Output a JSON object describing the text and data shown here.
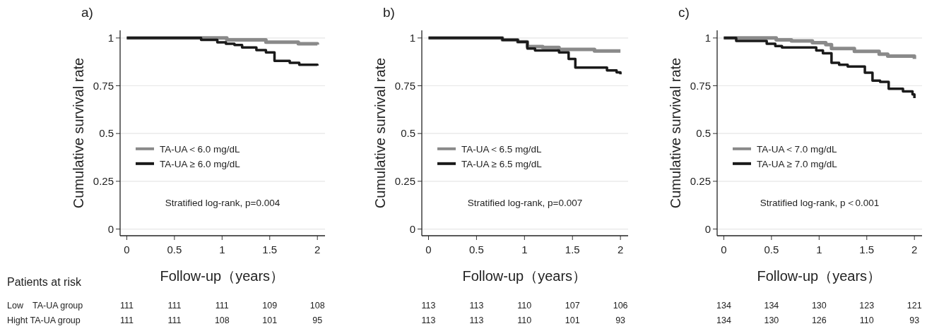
{
  "chart_data": [
    {
      "type": "step",
      "title": "a)",
      "xlabel": "Follow-up（years）",
      "ylabel": "Cumulative survival rate",
      "xlim": [
        -0.07,
        2.08
      ],
      "ylim": [
        -0.035,
        1.04
      ],
      "xticks": [
        0,
        0.5,
        1,
        1.5,
        2
      ],
      "yticks": [
        0,
        0.25,
        0.5,
        0.75,
        1
      ],
      "grid": "y",
      "legend": "left",
      "series": [
        {
          "name": "TA-UA＜6.0 mg/dL",
          "color": "#8a8a8a",
          "x": [
            0,
            1.05,
            1.46,
            1.8,
            2.0
          ],
          "values": [
            1,
            0.99,
            0.978,
            0.97,
            0.965
          ]
        },
        {
          "name": "TA-UA ≥ 6.0 mg/dL",
          "color": "#1a1a1a",
          "x": [
            0,
            0.78,
            0.95,
            1.04,
            1.13,
            1.21,
            1.36,
            1.46,
            1.55,
            1.71,
            1.81,
            2.0
          ],
          "values": [
            1,
            0.99,
            0.977,
            0.97,
            0.963,
            0.95,
            0.937,
            0.925,
            0.88,
            0.87,
            0.86,
            0.855
          ]
        }
      ],
      "annotations": [
        "Stratified log-rank, p=0.004",
        "Patients at risk",
        "Low　TA-UA group",
        "Hight TA-UA group",
        "111",
        "111",
        "111",
        "109",
        "108",
        "111",
        "111",
        "108",
        "101",
        "95"
      ]
    },
    {
      "type": "step",
      "title": "b)",
      "xlabel": "Follow-up（years）",
      "ylabel": "Cumulative survival rate",
      "xlim": [
        -0.07,
        2.08
      ],
      "ylim": [
        -0.035,
        1.04
      ],
      "xticks": [
        0,
        0.5,
        1,
        1.5,
        2
      ],
      "yticks": [
        0,
        0.25,
        0.5,
        0.75,
        1
      ],
      "grid": "y",
      "legend": "left",
      "series": [
        {
          "name": "TA-UA＜6.5 mg/dL",
          "color": "#8a8a8a",
          "x": [
            0,
            0.77,
            0.93,
            1.03,
            1.19,
            1.36,
            1.73,
            2.0
          ],
          "values": [
            1,
            0.99,
            0.98,
            0.955,
            0.95,
            0.94,
            0.932,
            0.932
          ]
        },
        {
          "name": "TA-UA ≥ 6.5 mg/dL",
          "color": "#1a1a1a",
          "x": [
            0,
            0.77,
            0.93,
            1.03,
            1.11,
            1.36,
            1.46,
            1.53,
            1.86,
            1.96,
            2.0
          ],
          "values": [
            1,
            0.99,
            0.98,
            0.945,
            0.935,
            0.925,
            0.89,
            0.845,
            0.83,
            0.82,
            0.81
          ]
        }
      ],
      "annotations": [
        "Stratified log-rank, p=0.007",
        "113",
        "113",
        "110",
        "107",
        "106",
        "113",
        "113",
        "110",
        "101",
        "93"
      ]
    },
    {
      "type": "step",
      "title": "c)",
      "xlabel": "Follow-up（years）",
      "ylabel": "Cumulative survival rate",
      "xlim": [
        -0.07,
        2.08
      ],
      "ylim": [
        -0.035,
        1.04
      ],
      "xticks": [
        0,
        0.5,
        1,
        1.5,
        2
      ],
      "yticks": [
        0,
        0.25,
        0.5,
        0.75,
        1
      ],
      "grid": "y",
      "legend": "left",
      "series": [
        {
          "name": "TA-UA＜7.0 mg/dL",
          "color": "#8a8a8a",
          "x": [
            0,
            0.55,
            0.71,
            0.93,
            1.07,
            1.13,
            1.37,
            1.63,
            1.72,
            2.0
          ],
          "values": [
            1,
            0.99,
            0.985,
            0.975,
            0.965,
            0.945,
            0.93,
            0.915,
            0.905,
            0.89
          ]
        },
        {
          "name": "TA-UA ≥ 7.0 mg/dL",
          "color": "#1a1a1a",
          "x": [
            0,
            0.13,
            0.45,
            0.54,
            0.61,
            0.97,
            1.04,
            1.13,
            1.21,
            1.3,
            1.48,
            1.56,
            1.64,
            1.73,
            1.88,
            1.98,
            2.0
          ],
          "values": [
            1,
            0.985,
            0.97,
            0.958,
            0.95,
            0.935,
            0.92,
            0.87,
            0.86,
            0.851,
            0.818,
            0.777,
            0.77,
            0.734,
            0.72,
            0.705,
            0.685
          ]
        }
      ],
      "annotations": [
        "Stratified log-rank, p＜0.001",
        "134",
        "134",
        "130",
        "123",
        "121",
        "134",
        "130",
        "126",
        "110",
        "93"
      ]
    }
  ]
}
